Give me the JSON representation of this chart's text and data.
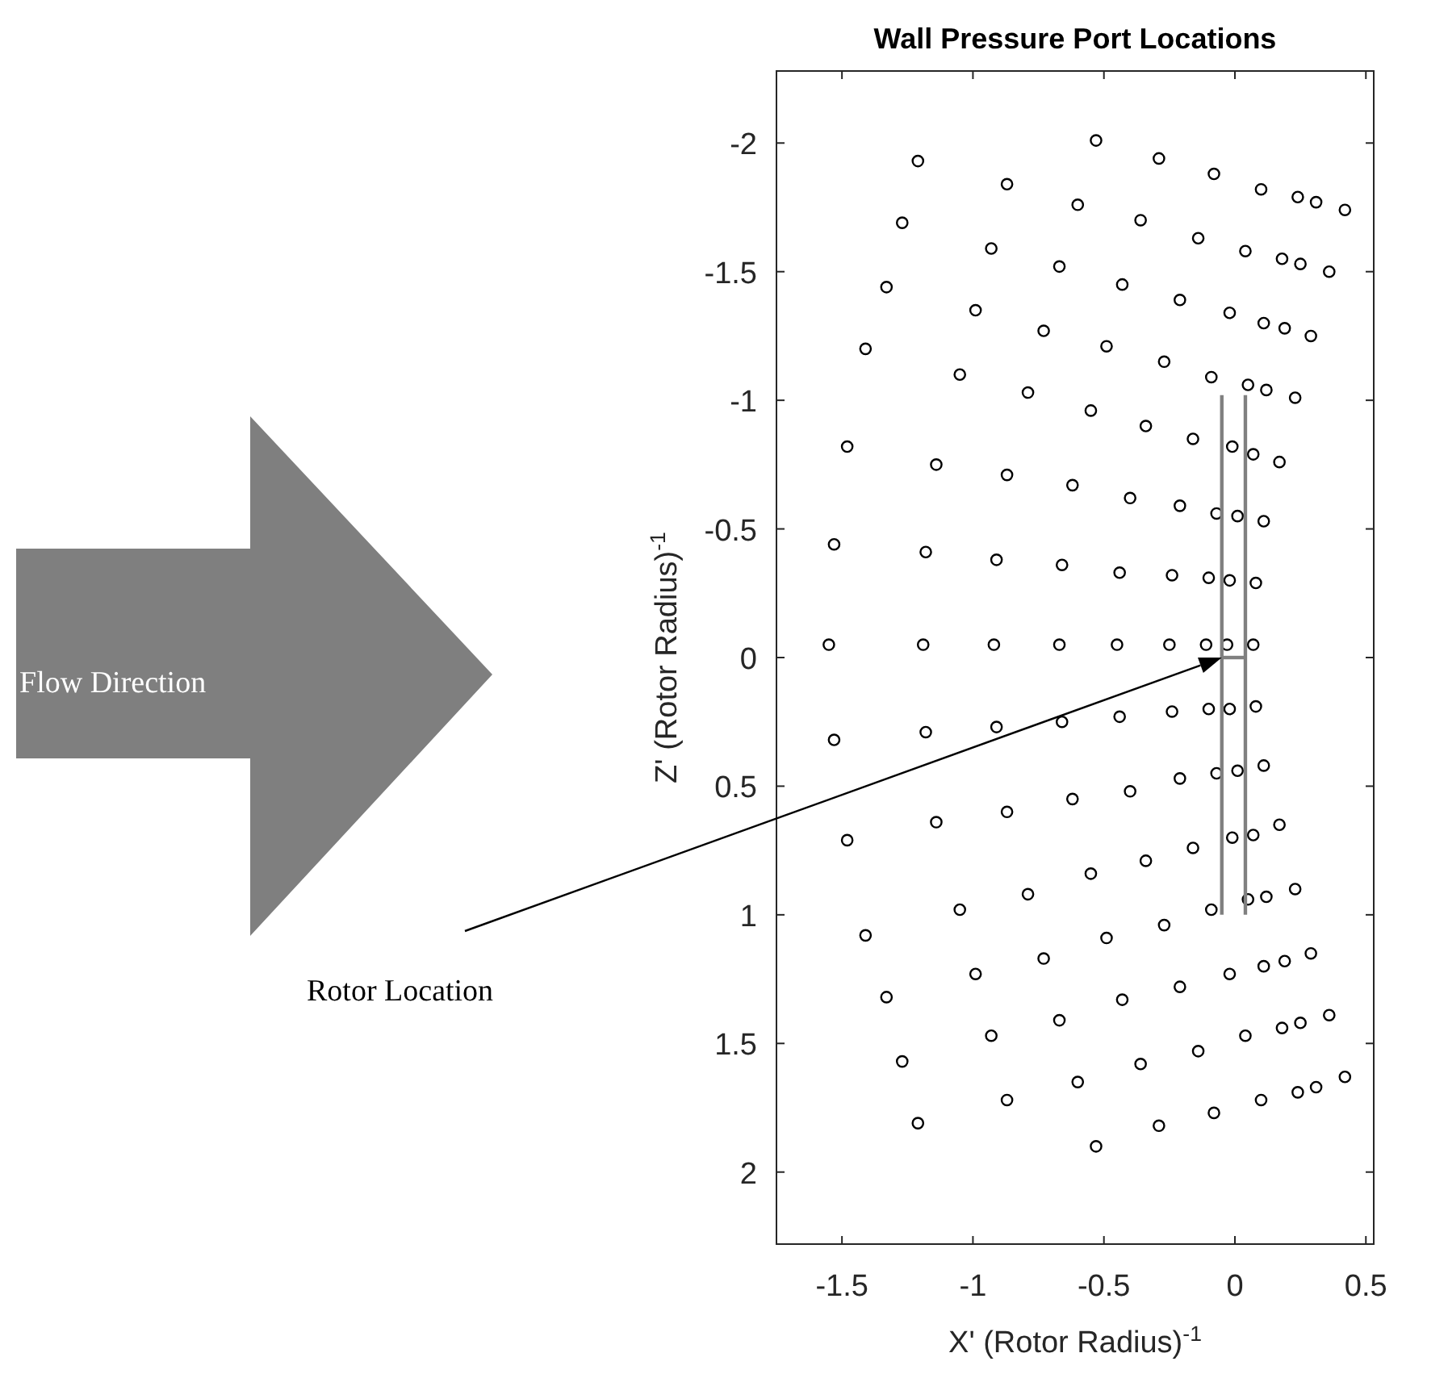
{
  "chart_data": {
    "type": "scatter",
    "title": "Wall Pressure Port Locations",
    "xlabel": "X' (Rotor Radius)$^{-1}$",
    "ylabel": "Z' (Rotor Radius)$^{-1}$",
    "xlim": [
      -1.75,
      0.53
    ],
    "ylim": [
      2.28,
      -2.28
    ],
    "xticks": [
      -1.5,
      -1,
      -0.5,
      0,
      0.5
    ],
    "yticks": [
      -2,
      -1.5,
      -1,
      -0.5,
      0,
      0.5,
      1,
      1.5,
      2
    ],
    "grid": false,
    "annotations": [
      "Flow Direction",
      "Rotor Location"
    ],
    "series": [
      {
        "marker": "circle",
        "color": "#000000",
        "x": [
          -1.21,
          -0.53,
          -0.29,
          -0.08,
          0.1,
          0.24,
          0.31,
          0.42,
          -0.87,
          -0.6,
          -0.36,
          -0.14,
          0.04,
          0.18,
          0.25,
          0.36,
          -1.27,
          -0.93,
          -0.67,
          -0.43,
          -0.21,
          -0.02,
          0.11,
          0.19,
          0.29,
          -1.33,
          -0.99,
          -0.73,
          -0.49,
          -0.27,
          -0.09,
          0.05,
          0.12,
          0.23,
          -1.41,
          -1.05,
          -0.79,
          -0.55,
          -0.34,
          -0.16,
          -0.01,
          0.07,
          0.17,
          -1.48,
          -1.14,
          -0.87,
          -0.62,
          -0.4,
          -0.21,
          -0.07,
          0.01,
          0.11,
          -1.53,
          -1.18,
          -0.91,
          -0.66,
          -0.44,
          -0.24,
          -0.1,
          -0.02,
          0.08,
          -1.55,
          -1.19,
          -0.92,
          -0.67,
          -0.45,
          -0.25,
          -0.11,
          -0.03,
          0.07,
          -1.53,
          -1.18,
          -0.91,
          -0.66,
          -0.44,
          -0.24,
          -0.1,
          -0.02,
          0.08,
          -1.48,
          -1.14,
          -0.87,
          -0.62,
          -0.4,
          -0.21,
          -0.07,
          0.01,
          0.11,
          -1.41,
          -1.05,
          -0.79,
          -0.55,
          -0.34,
          -0.16,
          -0.01,
          0.07,
          0.17,
          -1.33,
          -0.99,
          -0.73,
          -0.49,
          -0.27,
          -0.09,
          0.05,
          0.12,
          0.23,
          -1.27,
          -0.93,
          -0.67,
          -0.43,
          -0.21,
          -0.02,
          0.11,
          0.19,
          0.29,
          -1.21,
          -0.87,
          -0.6,
          -0.36,
          -0.14,
          0.04,
          0.18,
          0.25,
          0.36,
          -0.53,
          -0.29,
          -0.08,
          0.1,
          0.24,
          0.31,
          0.42
        ],
        "values": [
          -1.93,
          -2.01,
          -1.94,
          -1.88,
          -1.82,
          -1.79,
          -1.77,
          -1.74,
          -1.84,
          -1.76,
          -1.7,
          -1.63,
          -1.58,
          -1.55,
          -1.53,
          -1.5,
          -1.69,
          -1.59,
          -1.52,
          -1.45,
          -1.39,
          -1.34,
          -1.3,
          -1.28,
          -1.25,
          -1.44,
          -1.35,
          -1.27,
          -1.21,
          -1.15,
          -1.09,
          -1.06,
          -1.04,
          -1.01,
          -1.2,
          -1.1,
          -1.03,
          -0.96,
          -0.9,
          -0.85,
          -0.82,
          -0.79,
          -0.76,
          -0.82,
          -0.75,
          -0.71,
          -0.67,
          -0.62,
          -0.59,
          -0.56,
          -0.55,
          -0.53,
          -0.44,
          -0.41,
          -0.38,
          -0.36,
          -0.33,
          -0.32,
          -0.31,
          -0.3,
          -0.29,
          -0.05,
          -0.05,
          -0.05,
          -0.05,
          -0.05,
          -0.05,
          -0.05,
          -0.05,
          -0.05,
          0.32,
          0.29,
          0.27,
          0.25,
          0.23,
          0.21,
          0.2,
          0.2,
          0.19,
          0.71,
          0.64,
          0.6,
          0.55,
          0.52,
          0.47,
          0.45,
          0.44,
          0.42,
          1.08,
          0.98,
          0.92,
          0.84,
          0.79,
          0.74,
          0.7,
          0.69,
          0.65,
          1.32,
          1.23,
          1.17,
          1.09,
          1.04,
          0.98,
          0.94,
          0.93,
          0.9,
          1.57,
          1.47,
          1.41,
          1.33,
          1.28,
          1.23,
          1.2,
          1.18,
          1.15,
          1.81,
          1.72,
          1.65,
          1.58,
          1.53,
          1.47,
          1.44,
          1.42,
          1.39,
          1.9,
          1.82,
          1.77,
          1.72,
          1.69,
          1.67,
          1.63
        ]
      },
      {
        "type": "line",
        "color": "#808080",
        "x": [
          -0.05,
          -0.05
        ],
        "values": [
          -1.02,
          1.0
        ]
      },
      {
        "type": "line",
        "color": "#808080",
        "x": [
          0.04,
          0.04
        ],
        "values": [
          -1.02,
          1.0
        ]
      },
      {
        "type": "line",
        "color": "#808080",
        "x": [
          -0.05,
          0.04
        ],
        "values": [
          0,
          0
        ]
      }
    ]
  }
}
